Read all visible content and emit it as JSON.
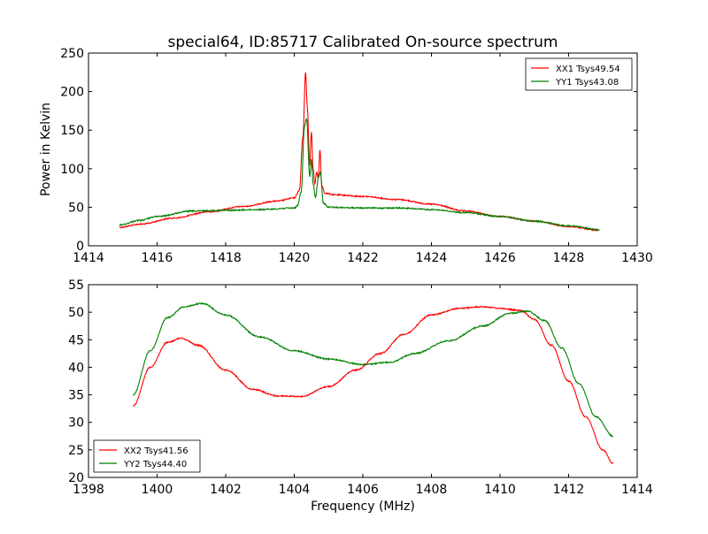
{
  "title": "special64, ID:85717 Calibrated On-source spectrum",
  "colors": {
    "red": "#ff0000",
    "green": "#008000"
  },
  "chart_data": [
    {
      "type": "line",
      "ylabel": "Power in Kelvin",
      "xlim": [
        1414,
        1430
      ],
      "ylim": [
        0,
        250
      ],
      "xticks": [
        1414,
        1416,
        1418,
        1420,
        1422,
        1424,
        1426,
        1428,
        1430
      ],
      "yticks": [
        0,
        50,
        100,
        150,
        200,
        250
      ],
      "legend_position": "top-right",
      "series": [
        {
          "name": "XX1 Tsys49.54",
          "color": "#ff0000",
          "x": [
            1414.9,
            1415.5,
            1416.5,
            1417.5,
            1418.5,
            1419.5,
            1420.0,
            1420.15,
            1420.25,
            1420.33,
            1420.38,
            1420.45,
            1420.5,
            1420.55,
            1420.6,
            1420.65,
            1420.7,
            1420.75,
            1420.8,
            1420.9,
            1421.2,
            1422.0,
            1423.0,
            1424.0,
            1425.0,
            1426.0,
            1427.0,
            1428.0,
            1428.9
          ],
          "y": [
            24,
            28,
            36,
            44,
            51,
            58,
            62,
            72,
            140,
            225,
            180,
            105,
            148,
            100,
            80,
            95,
            88,
            125,
            78,
            68,
            66,
            64,
            60,
            54,
            45,
            38,
            32,
            25,
            20
          ]
        },
        {
          "name": "YY1 Tsys43.08",
          "color": "#008000",
          "x": [
            1414.9,
            1415.5,
            1416.0,
            1417.0,
            1418.0,
            1419.0,
            1420.0,
            1420.1,
            1420.2,
            1420.3,
            1420.36,
            1420.45,
            1420.5,
            1420.55,
            1420.62,
            1420.7,
            1420.76,
            1420.85,
            1421.0,
            1422.0,
            1423.0,
            1424.0,
            1425.0,
            1426.0,
            1427.0,
            1428.0,
            1428.9
          ],
          "y": [
            27,
            33,
            38,
            45,
            46,
            47,
            49,
            52,
            70,
            155,
            165,
            90,
            112,
            80,
            62,
            88,
            95,
            55,
            50,
            49,
            49,
            47,
            43,
            38,
            32,
            26,
            21
          ]
        }
      ]
    },
    {
      "type": "line",
      "xlabel": "Frequency (MHz)",
      "xlim": [
        1398,
        1414
      ],
      "ylim": [
        20,
        55
      ],
      "xticks": [
        1398,
        1400,
        1402,
        1404,
        1406,
        1408,
        1410,
        1412,
        1414
      ],
      "yticks": [
        20,
        25,
        30,
        35,
        40,
        45,
        50,
        55
      ],
      "legend_position": "bottom-left",
      "series": [
        {
          "name": "XX2 Tsys41.56",
          "color": "#ff0000",
          "x": [
            1399.3,
            1399.8,
            1400.3,
            1400.7,
            1401.2,
            1402.0,
            1402.8,
            1403.5,
            1404.2,
            1405.0,
            1405.8,
            1406.5,
            1407.2,
            1408.0,
            1408.8,
            1409.5,
            1410.0,
            1410.6,
            1411.0,
            1411.5,
            1412.0,
            1412.5,
            1413.0,
            1413.3
          ],
          "y": [
            33,
            40,
            44.5,
            45.3,
            44,
            39.5,
            36,
            34.8,
            34.7,
            36.5,
            39.5,
            42.5,
            46,
            49.5,
            50.7,
            51,
            50.7,
            50.3,
            48.7,
            44,
            37.5,
            31,
            25,
            22.5
          ]
        },
        {
          "name": "YY2 Tsys44.40",
          "color": "#008000",
          "x": [
            1399.3,
            1399.8,
            1400.3,
            1400.8,
            1401.3,
            1402.0,
            1403.0,
            1404.0,
            1405.0,
            1406.0,
            1406.8,
            1407.5,
            1408.5,
            1409.5,
            1410.3,
            1410.8,
            1411.3,
            1411.8,
            1412.3,
            1412.8,
            1413.3
          ],
          "y": [
            35,
            43,
            49,
            51,
            51.6,
            49.5,
            45.5,
            43,
            41.5,
            40.5,
            40.9,
            42.5,
            44.8,
            47.5,
            49.8,
            50.2,
            48.5,
            43.5,
            37,
            31,
            27.5
          ]
        }
      ]
    }
  ]
}
